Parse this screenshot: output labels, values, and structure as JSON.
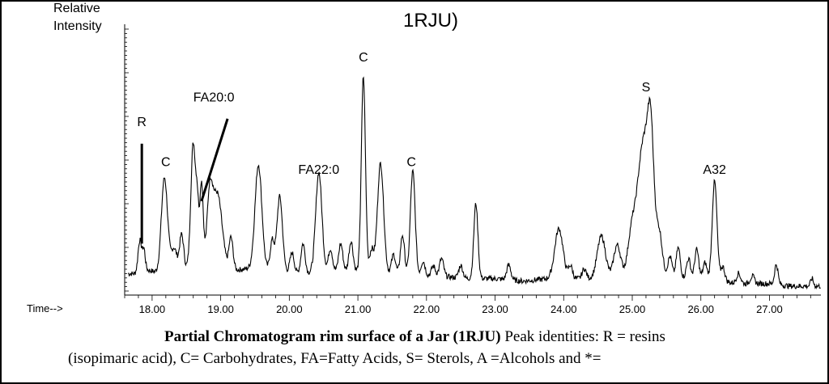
{
  "chart_data": {
    "type": "line",
    "title": "1RJU)",
    "ylabel": "Relative Intensity",
    "xlabel": "Time-->",
    "xlim": [
      17.6,
      27.75
    ],
    "x_ticks": [
      "18.00",
      "19.00",
      "20.00",
      "21.00",
      "22.00",
      "23.00",
      "24.00",
      "25.00",
      "26.00",
      "27.00"
    ],
    "x_tick_values": [
      18,
      19,
      20,
      21,
      22,
      23,
      24,
      25,
      26,
      27
    ],
    "ylim": [
      0,
      100
    ],
    "baseline": [
      [
        17.65,
        6
      ],
      [
        17.75,
        6
      ],
      [
        17.85,
        8
      ],
      [
        18.0,
        7
      ],
      [
        18.1,
        6
      ],
      [
        18.3,
        7
      ],
      [
        18.5,
        8
      ],
      [
        18.8,
        9
      ],
      [
        19.1,
        7
      ],
      [
        19.4,
        8
      ],
      [
        19.8,
        7
      ],
      [
        20.2,
        6
      ],
      [
        20.6,
        7
      ],
      [
        21.0,
        7
      ],
      [
        21.4,
        6
      ],
      [
        21.8,
        5
      ],
      [
        22.2,
        5
      ],
      [
        22.6,
        4
      ],
      [
        23.0,
        4
      ],
      [
        23.4,
        3
      ],
      [
        23.8,
        4
      ],
      [
        24.2,
        4
      ],
      [
        24.6,
        4
      ],
      [
        25.0,
        5
      ],
      [
        25.4,
        5
      ],
      [
        25.8,
        4
      ],
      [
        26.2,
        3
      ],
      [
        26.6,
        2
      ],
      [
        27.0,
        2
      ],
      [
        27.3,
        1
      ],
      [
        27.6,
        1
      ],
      [
        27.75,
        1
      ]
    ],
    "peaks": [
      {
        "t": 17.82,
        "h": 12,
        "w": 0.025
      },
      {
        "t": 17.88,
        "h": 8,
        "w": 0.02
      },
      {
        "t": 18.18,
        "h": 38,
        "w": 0.045
      },
      {
        "t": 18.32,
        "h": 9,
        "w": 0.04
      },
      {
        "t": 18.43,
        "h": 14,
        "w": 0.03
      },
      {
        "t": 18.6,
        "h": 50,
        "w": 0.035
      },
      {
        "t": 18.66,
        "h": 20,
        "w": 0.02
      },
      {
        "t": 18.72,
        "h": 34,
        "w": 0.025
      },
      {
        "t": 18.84,
        "h": 26,
        "w": 0.04
      },
      {
        "t": 18.95,
        "h": 30,
        "w": 0.07
      },
      {
        "t": 19.15,
        "h": 13,
        "w": 0.03
      },
      {
        "t": 19.55,
        "h": 42,
        "w": 0.05
      },
      {
        "t": 19.75,
        "h": 12,
        "w": 0.03
      },
      {
        "t": 19.86,
        "h": 30,
        "w": 0.04
      },
      {
        "t": 20.04,
        "h": 8,
        "w": 0.03
      },
      {
        "t": 20.2,
        "h": 12,
        "w": 0.03
      },
      {
        "t": 20.43,
        "h": 40,
        "w": 0.045
      },
      {
        "t": 20.6,
        "h": 9,
        "w": 0.03
      },
      {
        "t": 20.75,
        "h": 11,
        "w": 0.03
      },
      {
        "t": 20.9,
        "h": 12,
        "w": 0.03
      },
      {
        "t": 21.08,
        "h": 78,
        "w": 0.03
      },
      {
        "t": 21.2,
        "h": 9,
        "w": 0.03
      },
      {
        "t": 21.33,
        "h": 44,
        "w": 0.045
      },
      {
        "t": 21.52,
        "h": 8,
        "w": 0.03
      },
      {
        "t": 21.65,
        "h": 16,
        "w": 0.03
      },
      {
        "t": 21.8,
        "h": 42,
        "w": 0.035
      },
      {
        "t": 21.95,
        "h": 6,
        "w": 0.03
      },
      {
        "t": 22.1,
        "h": 4,
        "w": 0.03
      },
      {
        "t": 22.22,
        "h": 7,
        "w": 0.03
      },
      {
        "t": 22.5,
        "h": 5,
        "w": 0.03
      },
      {
        "t": 22.72,
        "h": 30,
        "w": 0.03
      },
      {
        "t": 23.2,
        "h": 6,
        "w": 0.03
      },
      {
        "t": 23.93,
        "h": 20,
        "w": 0.06
      },
      {
        "t": 24.1,
        "h": 5,
        "w": 0.03
      },
      {
        "t": 24.3,
        "h": 4,
        "w": 0.03
      },
      {
        "t": 24.55,
        "h": 17,
        "w": 0.06
      },
      {
        "t": 24.78,
        "h": 13,
        "w": 0.05
      },
      {
        "t": 24.98,
        "h": 10,
        "w": 0.05
      },
      {
        "t": 25.18,
        "h": 56,
        "w": 0.11
      },
      {
        "t": 25.27,
        "h": 28,
        "w": 0.04
      },
      {
        "t": 25.4,
        "h": 11,
        "w": 0.04
      },
      {
        "t": 25.55,
        "h": 8,
        "w": 0.03
      },
      {
        "t": 25.67,
        "h": 12,
        "w": 0.03
      },
      {
        "t": 25.82,
        "h": 8,
        "w": 0.03
      },
      {
        "t": 25.94,
        "h": 12,
        "w": 0.03
      },
      {
        "t": 26.06,
        "h": 7,
        "w": 0.03
      },
      {
        "t": 26.2,
        "h": 40,
        "w": 0.035
      },
      {
        "t": 26.32,
        "h": 6,
        "w": 0.03
      },
      {
        "t": 26.55,
        "h": 4,
        "w": 0.03
      },
      {
        "t": 26.75,
        "h": 3,
        "w": 0.03
      },
      {
        "t": 27.1,
        "h": 8,
        "w": 0.025
      },
      {
        "t": 27.62,
        "h": 3,
        "w": 0.02
      }
    ],
    "peak_labels": [
      {
        "text": "R",
        "t": 17.85,
        "y": 65,
        "leader_from": [
          17.85,
          58
        ],
        "leader_to": [
          17.85,
          18
        ]
      },
      {
        "text": "C",
        "t": 18.2,
        "y": 49
      },
      {
        "text": "FA20:0",
        "t": 18.9,
        "y": 75,
        "leader_from": [
          19.1,
          68
        ],
        "leader_to": [
          18.72,
          35
        ]
      },
      {
        "text": "FA22:0",
        "t": 20.43,
        "y": 46
      },
      {
        "text": "C",
        "t": 21.08,
        "y": 91
      },
      {
        "text": "C",
        "t": 21.78,
        "y": 49
      },
      {
        "text": "S",
        "t": 25.2,
        "y": 79
      },
      {
        "text": "A32",
        "t": 26.2,
        "y": 46
      }
    ]
  },
  "caption": {
    "bold": "Partial Chromatogram rim surface of a Jar (1RJU)",
    "rest": " Peak identities: R = resins",
    "line2": "(isopimaric acid), C= Carbohydrates, FA=Fatty Acids, S= Sterols, A =Alcohols and *="
  }
}
